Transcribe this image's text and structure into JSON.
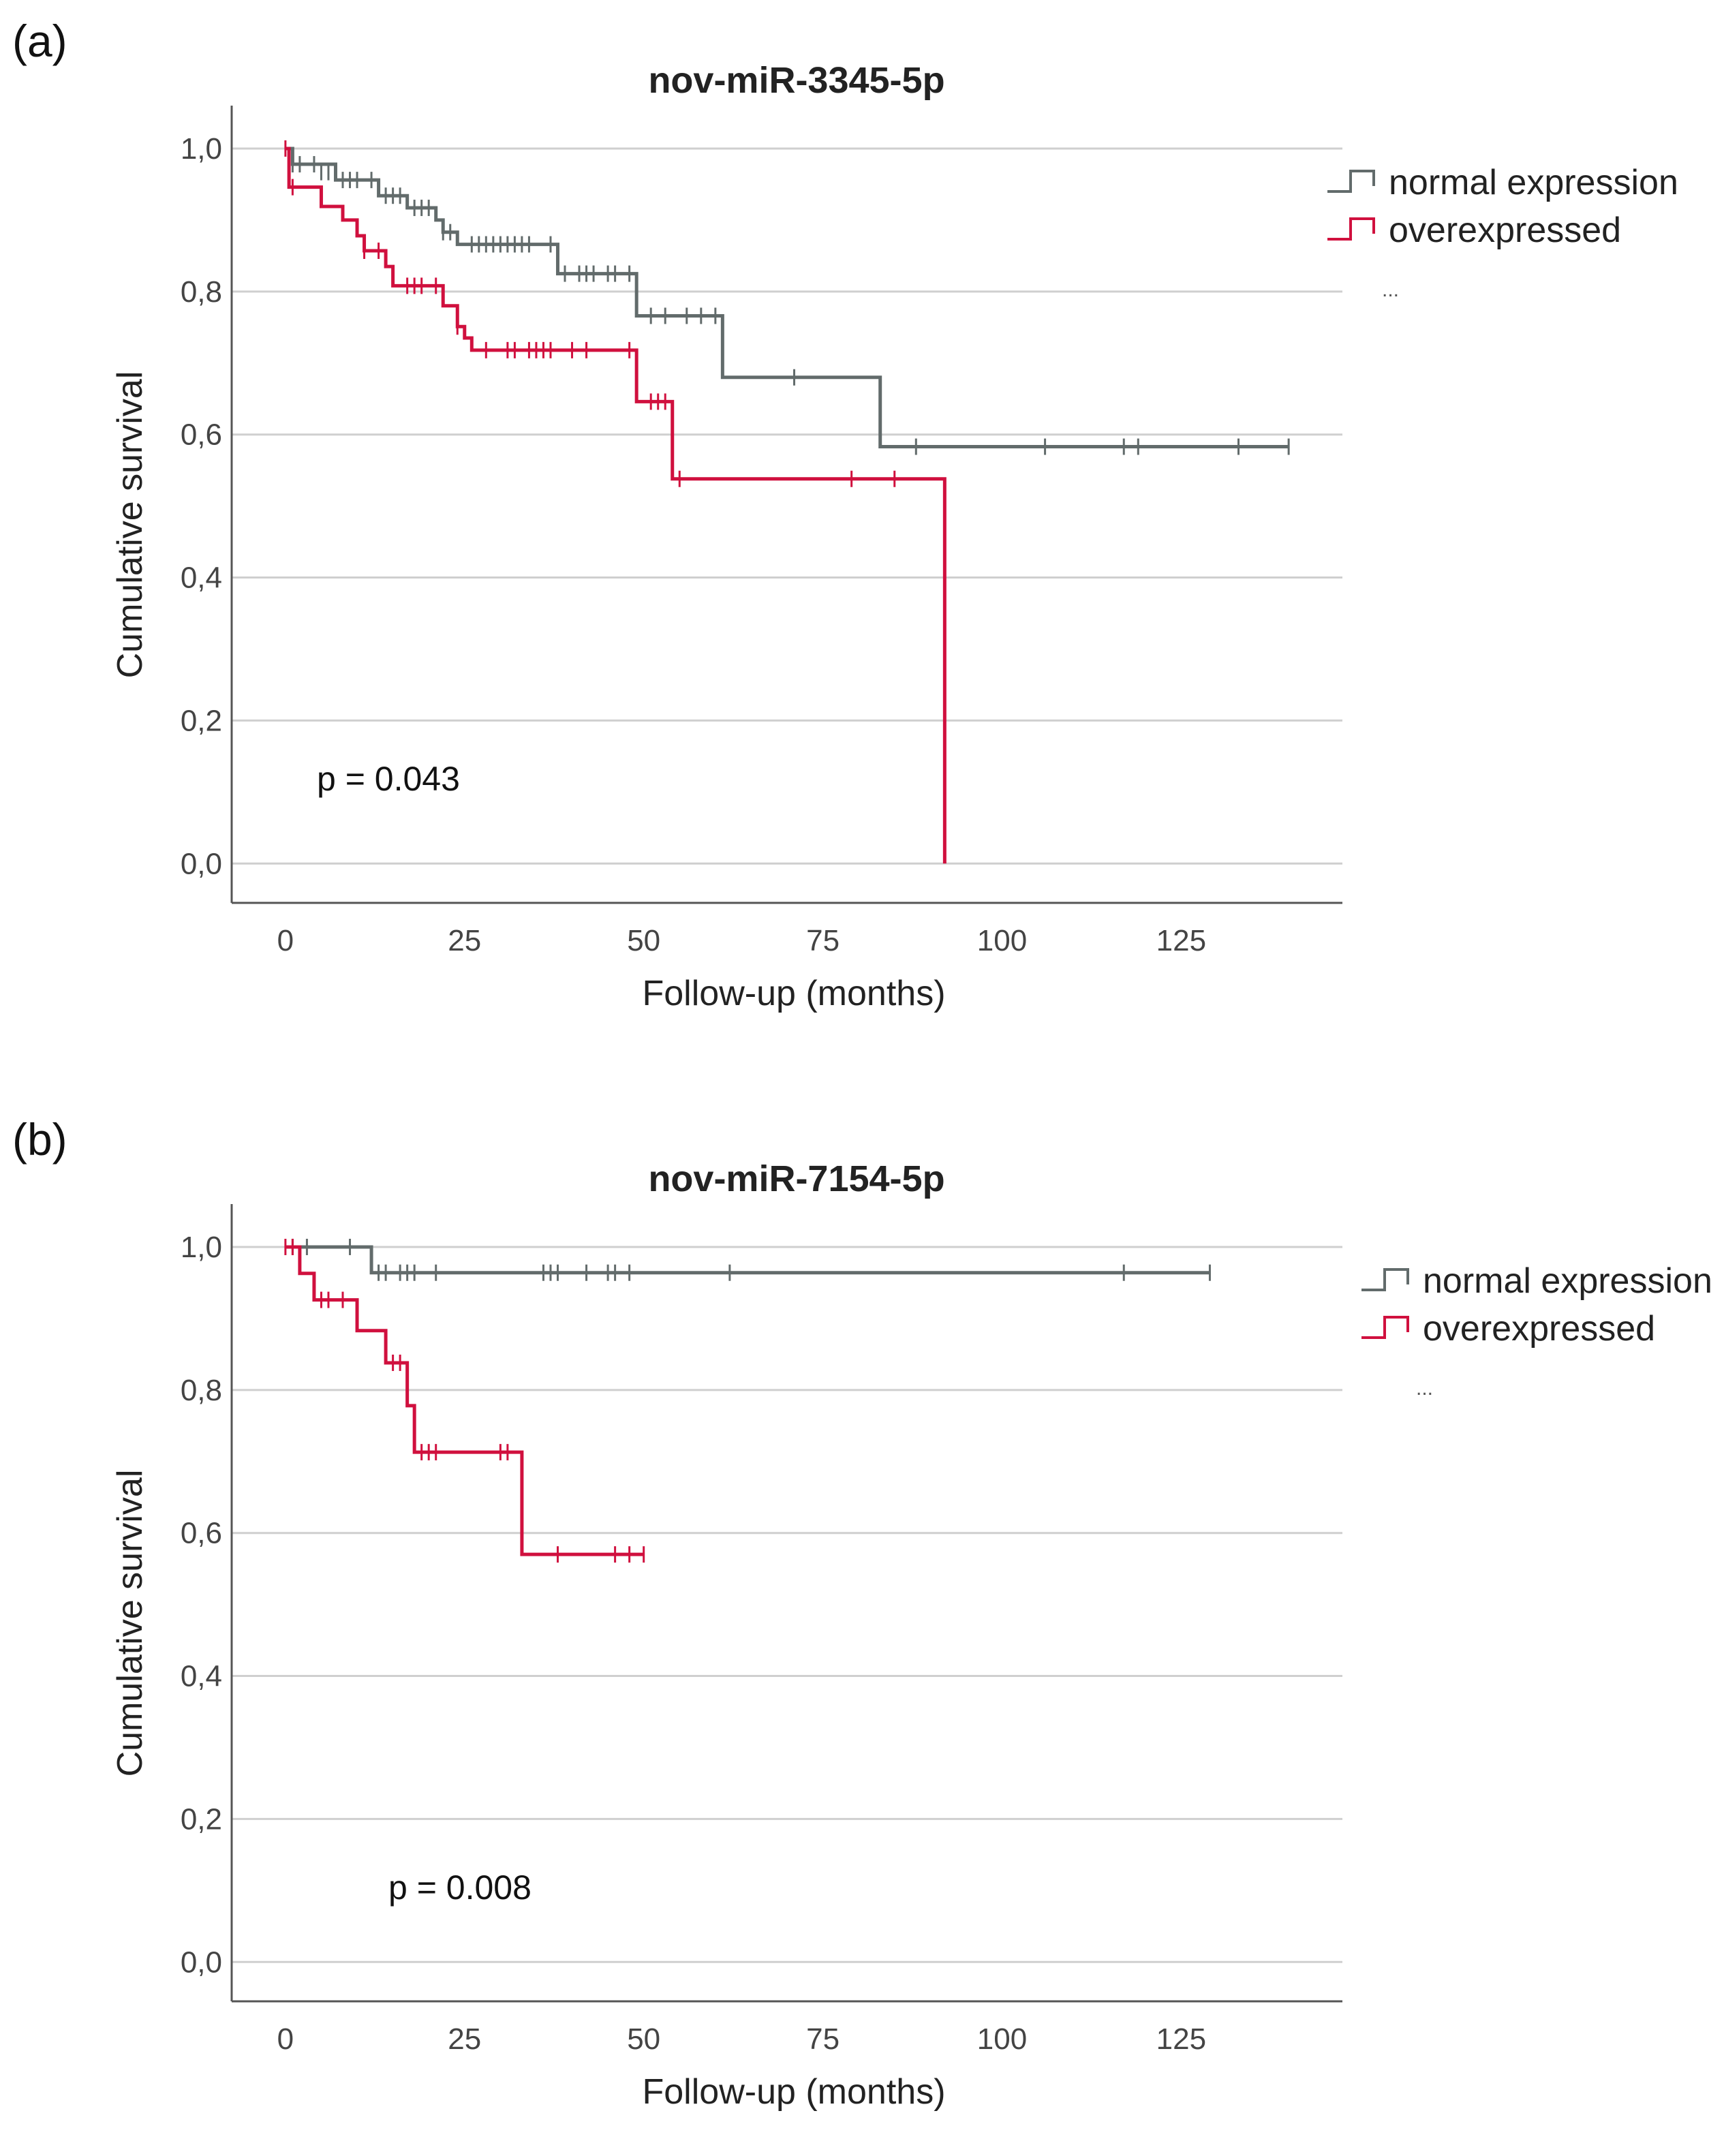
{
  "chart_data": [
    {
      "panel_label": "(a)",
      "type": "line",
      "subtype": "kaplan-meier step",
      "title": "nov-miR-3345-5p",
      "xlabel": "Follow-up (months)",
      "ylabel": "Cumulative survival",
      "xticks": [
        "0",
        "25",
        "50",
        "75",
        "100",
        "125"
      ],
      "yticks": [
        "0,0",
        "0,2",
        "0,4",
        "0,6",
        "0,8",
        "1,0"
      ],
      "xlim": [
        -7.5,
        147.5
      ],
      "ylim": [
        -0.055,
        1.06
      ],
      "grid": "horizontal",
      "legend_position": "top-right",
      "legend_extra": "...",
      "annotation": "p = 0.043",
      "series": [
        {
          "name": "normal expression",
          "color": "#626b6b",
          "steps": [
            [
              0,
              1.0
            ],
            [
              1,
              0.978
            ],
            [
              7,
              0.956
            ],
            [
              13,
              0.934
            ],
            [
              17,
              0.917
            ],
            [
              21,
              0.9
            ],
            [
              22,
              0.883
            ],
            [
              24,
              0.866
            ],
            [
              38,
              0.825
            ],
            [
              49,
              0.766
            ],
            [
              61,
              0.68
            ],
            [
              83,
              0.583
            ],
            [
              140,
              0.583
            ]
          ],
          "censored": [
            [
              1,
              0.978
            ],
            [
              2,
              0.978
            ],
            [
              4,
              0.978
            ],
            [
              5,
              0.967
            ],
            [
              6,
              0.967
            ],
            [
              8,
              0.956
            ],
            [
              9,
              0.956
            ],
            [
              10,
              0.956
            ],
            [
              12,
              0.956
            ],
            [
              14,
              0.934
            ],
            [
              15,
              0.934
            ],
            [
              16,
              0.934
            ],
            [
              18,
              0.917
            ],
            [
              19,
              0.917
            ],
            [
              20,
              0.917
            ],
            [
              22,
              0.883
            ],
            [
              23,
              0.883
            ],
            [
              26,
              0.866
            ],
            [
              27,
              0.866
            ],
            [
              28,
              0.866
            ],
            [
              29,
              0.866
            ],
            [
              30,
              0.866
            ],
            [
              31,
              0.866
            ],
            [
              32,
              0.866
            ],
            [
              33,
              0.866
            ],
            [
              34,
              0.866
            ],
            [
              37,
              0.866
            ],
            [
              39,
              0.825
            ],
            [
              41,
              0.825
            ],
            [
              42,
              0.825
            ],
            [
              43,
              0.825
            ],
            [
              45,
              0.825
            ],
            [
              46,
              0.825
            ],
            [
              48,
              0.825
            ],
            [
              51,
              0.766
            ],
            [
              53,
              0.766
            ],
            [
              56,
              0.766
            ],
            [
              58,
              0.766
            ],
            [
              60,
              0.766
            ],
            [
              71,
              0.68
            ],
            [
              88,
              0.583
            ],
            [
              106,
              0.583
            ],
            [
              117,
              0.583
            ],
            [
              119,
              0.583
            ],
            [
              133,
              0.583
            ],
            [
              140,
              0.583
            ]
          ]
        },
        {
          "name": "overexpressed",
          "color": "#d0103e",
          "steps": [
            [
              0,
              1.0
            ],
            [
              0.5,
              0.946
            ],
            [
              5,
              0.919
            ],
            [
              8,
              0.9
            ],
            [
              10,
              0.878
            ],
            [
              11,
              0.857
            ],
            [
              14,
              0.835
            ],
            [
              15,
              0.808
            ],
            [
              22,
              0.78
            ],
            [
              24,
              0.751
            ],
            [
              25,
              0.735
            ],
            [
              26,
              0.718
            ],
            [
              49,
              0.646
            ],
            [
              54,
              0.538
            ],
            [
              92,
              0.538
            ],
            [
              92,
              0.0
            ]
          ],
          "censored": [
            [
              0,
              1.0
            ],
            [
              1,
              0.946
            ],
            [
              11,
              0.857
            ],
            [
              13,
              0.857
            ],
            [
              17,
              0.808
            ],
            [
              18,
              0.808
            ],
            [
              19,
              0.808
            ],
            [
              21,
              0.808
            ],
            [
              24,
              0.751
            ],
            [
              28,
              0.718
            ],
            [
              31,
              0.718
            ],
            [
              32,
              0.718
            ],
            [
              34,
              0.718
            ],
            [
              35,
              0.718
            ],
            [
              36,
              0.718
            ],
            [
              37,
              0.718
            ],
            [
              40,
              0.718
            ],
            [
              42,
              0.718
            ],
            [
              48,
              0.718
            ],
            [
              51,
              0.646
            ],
            [
              52,
              0.646
            ],
            [
              53,
              0.646
            ],
            [
              55,
              0.538
            ],
            [
              79,
              0.538
            ],
            [
              85,
              0.538
            ]
          ]
        }
      ]
    },
    {
      "panel_label": "(b)",
      "type": "line",
      "subtype": "kaplan-meier step",
      "title": "nov-miR-7154-5p",
      "xlabel": "Follow-up (months)",
      "ylabel": "Cumulative survival",
      "xticks": [
        "0",
        "25",
        "50",
        "75",
        "100",
        "125"
      ],
      "yticks": [
        "0,0",
        "0,2",
        "0,4",
        "0,6",
        "0,8",
        "1,0"
      ],
      "xlim": [
        -7.5,
        147.5
      ],
      "ylim": [
        -0.055,
        1.06
      ],
      "grid": "horizontal",
      "legend_position": "top-right",
      "legend_extra": "...",
      "annotation": "p = 0.008",
      "series": [
        {
          "name": "normal expression",
          "color": "#626b6b",
          "steps": [
            [
              0,
              1.0
            ],
            [
              12,
              0.964
            ],
            [
              129,
              0.964
            ]
          ],
          "censored": [
            [
              1,
              1.0
            ],
            [
              3,
              1.0
            ],
            [
              9,
              1.0
            ],
            [
              13,
              0.964
            ],
            [
              14,
              0.964
            ],
            [
              16,
              0.964
            ],
            [
              17,
              0.964
            ],
            [
              18,
              0.964
            ],
            [
              21,
              0.964
            ],
            [
              36,
              0.964
            ],
            [
              37,
              0.964
            ],
            [
              38,
              0.964
            ],
            [
              42,
              0.964
            ],
            [
              45,
              0.964
            ],
            [
              46,
              0.964
            ],
            [
              48,
              0.964
            ],
            [
              62,
              0.964
            ],
            [
              117,
              0.964
            ],
            [
              129,
              0.964
            ]
          ]
        },
        {
          "name": "overexpressed",
          "color": "#d0103e",
          "steps": [
            [
              0,
              1.0
            ],
            [
              2,
              0.963
            ],
            [
              4,
              0.926
            ],
            [
              10,
              0.883
            ],
            [
              14,
              0.838
            ],
            [
              17,
              0.778
            ],
            [
              18,
              0.713
            ],
            [
              33,
              0.57
            ],
            [
              50,
              0.57
            ]
          ],
          "censored": [
            [
              0,
              1.0
            ],
            [
              1,
              1.0
            ],
            [
              5,
              0.926
            ],
            [
              6,
              0.926
            ],
            [
              8,
              0.926
            ],
            [
              15,
              0.838
            ],
            [
              16,
              0.838
            ],
            [
              19,
              0.713
            ],
            [
              20,
              0.713
            ],
            [
              21,
              0.713
            ],
            [
              30,
              0.713
            ],
            [
              31,
              0.713
            ],
            [
              38,
              0.57
            ],
            [
              46,
              0.57
            ],
            [
              48,
              0.57
            ],
            [
              50,
              0.57
            ]
          ]
        }
      ]
    }
  ]
}
